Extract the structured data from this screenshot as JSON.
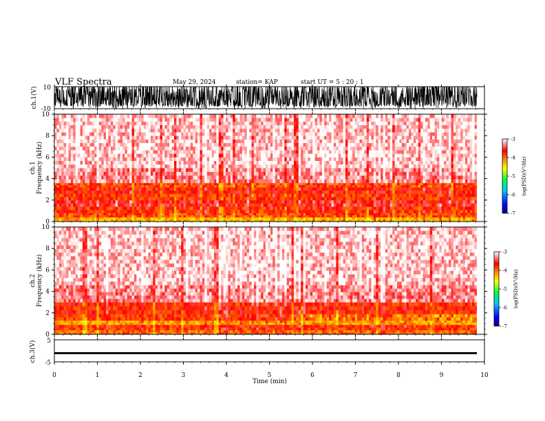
{
  "header": {
    "title": "VLF Spectra",
    "date": "May 29, 2024",
    "station": "station= KAP",
    "start": "start  UT =   5 : 20 : 1"
  },
  "chart_data": [
    {
      "type": "line",
      "panel": "ch1-waveform",
      "ylabel": "ch.1(V)",
      "ylim": [
        -10,
        10
      ],
      "y_ticks": [
        10,
        -10
      ],
      "description_values": "dense saturated noise trace spanning roughly -8 to +10 V"
    },
    {
      "type": "heatmap",
      "panel": "ch1-spectrogram",
      "ylabel_line1": "ch.1",
      "ylabel_line2": "Frequency  (kHz)",
      "ylim": [
        0,
        10
      ],
      "y_ticks": [
        0,
        2,
        4,
        6,
        8,
        10
      ],
      "colorbar": {
        "label": "log(PSD)(V²/Hz)",
        "range": [
          -7,
          -3
        ],
        "ticks": [
          -3,
          -4,
          -5,
          -6,
          -7
        ]
      },
      "bands": [
        {
          "from": 0,
          "to": 0.4,
          "level": -4.3
        },
        {
          "from": 0.4,
          "to": 0.8,
          "level": -3.9
        },
        {
          "from": 0.8,
          "to": 1.4,
          "level": -3.8
        },
        {
          "from": 1.4,
          "to": 2.0,
          "level": -3.6
        },
        {
          "from": 2.0,
          "to": 2.6,
          "level": -3.8
        },
        {
          "from": 2.6,
          "to": 3.2,
          "level": -3.7
        },
        {
          "from": 3.2,
          "to": 3.6,
          "level": -3.9
        },
        {
          "from": 3.6,
          "to": 5.0,
          "level": -3.3
        },
        {
          "from": 5.0,
          "to": 10,
          "level": -3.15
        }
      ]
    },
    {
      "type": "heatmap",
      "panel": "ch2-spectrogram",
      "ylabel_line1": "ch.2",
      "ylabel_line2": "Frequency  (kHz)",
      "ylim": [
        0,
        10
      ],
      "y_ticks": [
        0,
        2,
        4,
        6,
        8,
        10
      ],
      "colorbar": {
        "label": "log(PSD)(V²/Hz)",
        "range": [
          -7,
          -3
        ],
        "ticks": [
          -3,
          -4,
          -5,
          -6,
          -7
        ]
      },
      "bands": [
        {
          "from": 0,
          "to": 0.4,
          "level": -4.0
        },
        {
          "from": 0.4,
          "to": 0.9,
          "level": -3.8
        },
        {
          "from": 0.9,
          "to": 1.3,
          "level": -4.2
        },
        {
          "from": 1.3,
          "to": 1.9,
          "level": -3.8
        },
        {
          "from": 1.9,
          "to": 3.0,
          "level": -3.75
        },
        {
          "from": 3.0,
          "to": 4.6,
          "level": -3.3
        },
        {
          "from": 4.6,
          "to": 10,
          "level": -3.15
        }
      ]
    },
    {
      "type": "line",
      "panel": "ch3-waveform",
      "ylabel": "ch.3(V)",
      "ylim": [
        -5,
        5
      ],
      "y_ticks": [
        5,
        0,
        -5
      ],
      "baseline_values": [
        -1.5,
        -0.6
      ],
      "xlabel": "Time  (min)",
      "xlim": [
        0,
        10
      ],
      "x_ticks": [
        0,
        1,
        2,
        3,
        4,
        5,
        6,
        7,
        8,
        9,
        10
      ]
    }
  ]
}
